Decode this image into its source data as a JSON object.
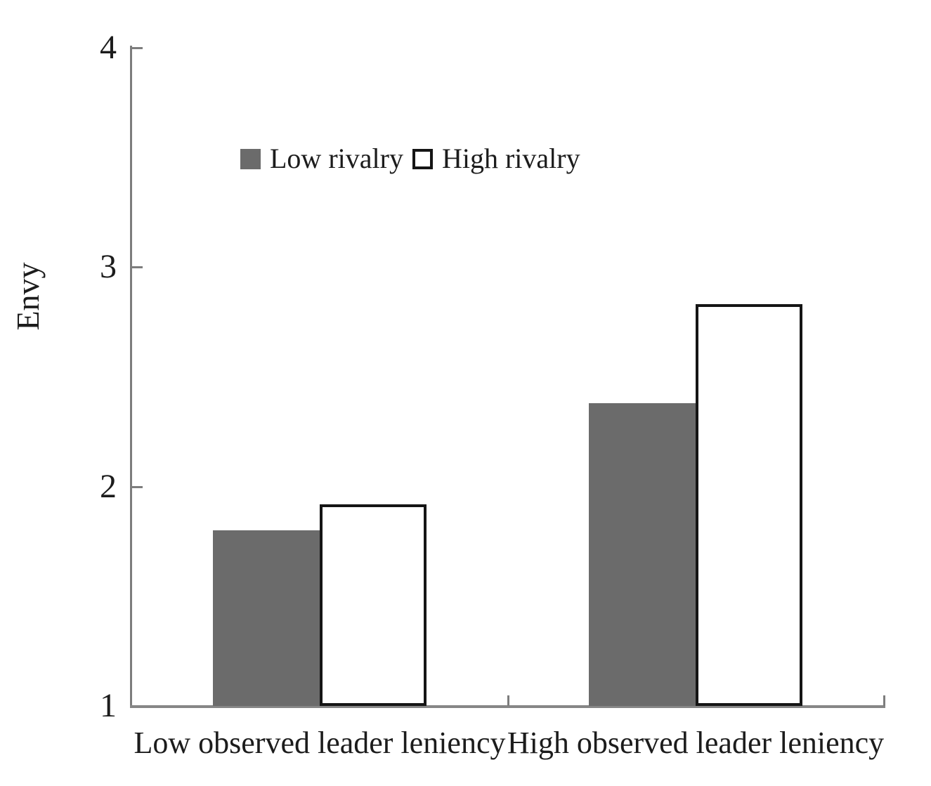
{
  "chart_data": {
    "type": "bar",
    "title": "",
    "ylabel": "Envy",
    "xlabel": "",
    "ylim": [
      1,
      4
    ],
    "yticks": [
      1,
      2,
      3,
      4
    ],
    "grid": false,
    "legend_position": "inside-upper-left",
    "categories": [
      "Low observed leader leniency",
      "High observed leader leniency"
    ],
    "series": [
      {
        "name": "Low rivalry",
        "values": [
          1.8,
          2.38
        ],
        "fill": "#6b6b6b",
        "border": null
      },
      {
        "name": "High rivalry",
        "values": [
          1.92,
          2.83
        ],
        "fill": "#ffffff",
        "border": "#151515"
      }
    ]
  },
  "colors": {
    "axis": "#7d7d7d",
    "baseline": "#868686",
    "text": "#1c1c1c",
    "gray_fill": "#6b6b6b",
    "bar_border": "#151515",
    "background": "#ffffff"
  }
}
